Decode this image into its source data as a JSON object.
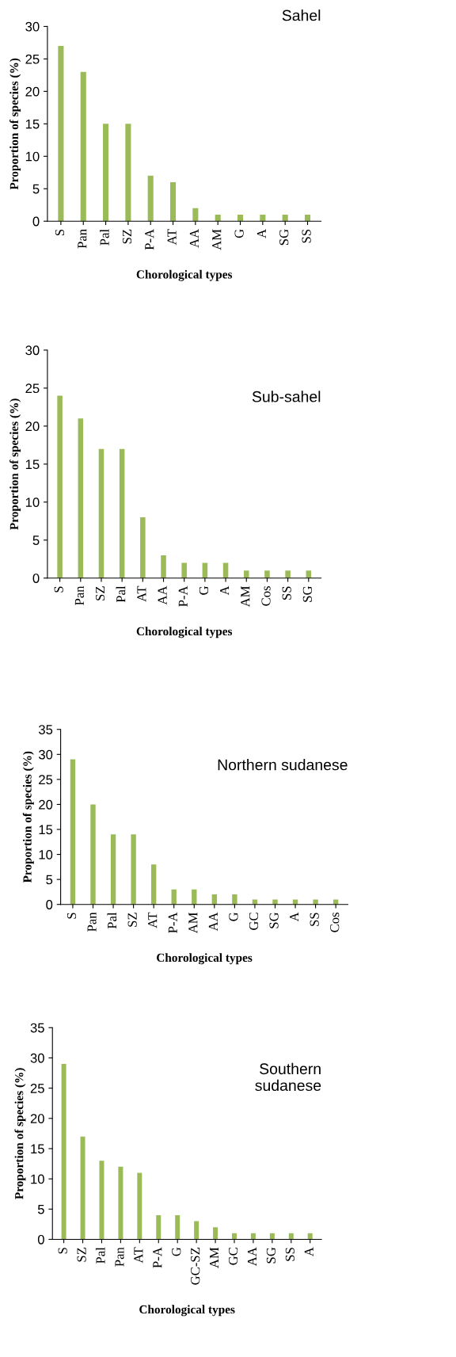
{
  "chart_data": [
    {
      "type": "bar",
      "title": "Sahel",
      "xlabel": "Chorological types",
      "ylabel": "Proportion of species (%)",
      "categories": [
        "S",
        "Pan",
        "Pal",
        "SZ",
        "P-A",
        "AT",
        "AA",
        "AM",
        "G",
        "A",
        "SG",
        "SS"
      ],
      "values": [
        27,
        23,
        15,
        15,
        7,
        6,
        2,
        1,
        1,
        1,
        1,
        1
      ],
      "color": "#9bbb59",
      "ylim": [
        0,
        30
      ],
      "yticks": [
        0,
        5,
        10,
        15,
        20,
        25,
        30
      ],
      "grid": false,
      "legend": false
    },
    {
      "type": "bar",
      "title": "Sub-sahel",
      "xlabel": "Chorological types",
      "ylabel": "Proportion of species (%)",
      "categories": [
        "S",
        "Pan",
        "SZ",
        "Pal",
        "AT",
        "AA",
        "P-A",
        "G",
        "A",
        "AM",
        "Cos",
        "SS",
        "SG"
      ],
      "values": [
        24,
        21,
        17,
        17,
        8,
        3,
        2,
        2,
        2,
        1,
        1,
        1,
        1
      ],
      "color": "#9bbb59",
      "ylim": [
        0,
        30
      ],
      "yticks": [
        0,
        5,
        10,
        15,
        20,
        25,
        30
      ],
      "grid": false,
      "legend": false
    },
    {
      "type": "bar",
      "title": "Northern sudanese",
      "xlabel": "Chorological types",
      "ylabel": "Proportion of species (%)",
      "categories": [
        "S",
        "Pan",
        "Pal",
        "SZ",
        "AT",
        "P-A",
        "AM",
        "AA",
        "G",
        "GC",
        "SG",
        "A",
        "SS",
        "Cos"
      ],
      "values": [
        29,
        20,
        14,
        14,
        8,
        3,
        3,
        2,
        2,
        1,
        1,
        1,
        1,
        1
      ],
      "color": "#9bbb59",
      "ylim": [
        0,
        35
      ],
      "yticks": [
        0,
        5,
        10,
        15,
        20,
        25,
        30,
        35
      ],
      "grid": false,
      "legend": false
    },
    {
      "type": "bar",
      "title": "Southern\nsudanese",
      "xlabel": "Chorological types",
      "ylabel": "Proportion of species (%)",
      "categories": [
        "S",
        "SZ",
        "Pal",
        "Pan",
        "AT",
        "P-A",
        "G",
        "GC-SZ",
        "AM",
        "GC",
        "AA",
        "SG",
        "SS",
        "A"
      ],
      "values": [
        29,
        17,
        13,
        12,
        11,
        4,
        4,
        3,
        2,
        1,
        1,
        1,
        1,
        1
      ],
      "color": "#9bbb59",
      "ylim": [
        0,
        35
      ],
      "yticks": [
        0,
        5,
        10,
        15,
        20,
        25,
        30,
        35
      ],
      "grid": false,
      "legend": false
    }
  ]
}
